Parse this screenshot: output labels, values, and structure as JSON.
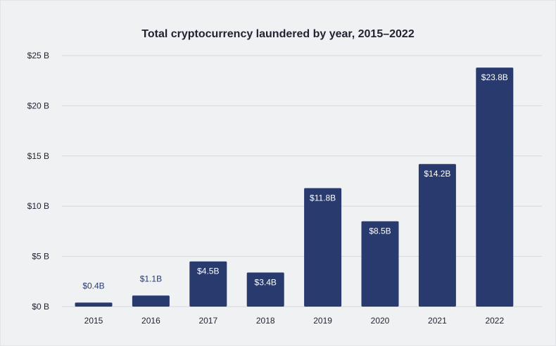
{
  "chart_data": {
    "type": "bar",
    "title": "Total cryptocurrency laundered by year, 2015–2022",
    "categories": [
      "2015",
      "2016",
      "2017",
      "2018",
      "2019",
      "2020",
      "2021",
      "2022"
    ],
    "values": [
      0.4,
      1.1,
      4.5,
      3.4,
      11.8,
      8.5,
      14.2,
      23.8
    ],
    "data_labels": [
      "$0.4B",
      "$1.1B",
      "$4.5B",
      "$3.4B",
      "$11.8B",
      "$8.5B",
      "$14.2B",
      "$23.8B"
    ],
    "y_ticks": [
      0,
      5,
      10,
      15,
      20,
      25
    ],
    "y_tick_labels": [
      "$0 B",
      "$5 B",
      "$10 B",
      "$15 B",
      "$20 B",
      "$25 B"
    ],
    "ylim": [
      0,
      25
    ],
    "grid": true,
    "legend": "none",
    "colors": {
      "bar": "#293a6e",
      "label_inside": "#ffffff",
      "label_outside": "#293a6e",
      "grid": "#d6d8de",
      "text": "#1f2230"
    }
  }
}
